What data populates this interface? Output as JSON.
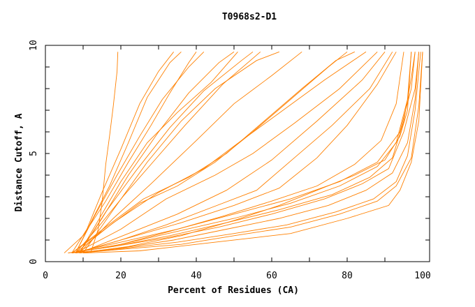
{
  "chart_data": {
    "type": "line",
    "title": "T0968s2-D1",
    "xlabel": "Percent of Residues (CA)",
    "ylabel": "Distance Cutoff, A",
    "xlim": [
      0,
      100
    ],
    "ylim": [
      0,
      10
    ],
    "xticks": [
      "0",
      "20",
      "40",
      "60",
      "80",
      "100"
    ],
    "yticks": [
      "0",
      "5",
      "10"
    ],
    "grid": false,
    "line_color": "#ff8000",
    "series": [
      {
        "points": [
          [
            12,
            0.4
          ],
          [
            14,
            1.5
          ],
          [
            15,
            2.7
          ],
          [
            16,
            4.5
          ],
          [
            17,
            5.8
          ],
          [
            18,
            7.2
          ],
          [
            19,
            8.8
          ],
          [
            19.2,
            9.7
          ]
        ]
      },
      {
        "points": [
          [
            7,
            0.4
          ],
          [
            11,
            1.5
          ],
          [
            15,
            3.2
          ],
          [
            20,
            5.2
          ],
          [
            25,
            7.3
          ],
          [
            30,
            8.8
          ],
          [
            34,
            9.7
          ]
        ]
      },
      {
        "points": [
          [
            8,
            0.4
          ],
          [
            12,
            1.8
          ],
          [
            17,
            3.5
          ],
          [
            22,
            5.5
          ],
          [
            27,
            7.6
          ],
          [
            33,
            9.2
          ],
          [
            36,
            9.7
          ]
        ]
      },
      {
        "points": [
          [
            8,
            0.4
          ],
          [
            13,
            2.1
          ],
          [
            19,
            4.0
          ],
          [
            25,
            5.8
          ],
          [
            31,
            7.5
          ],
          [
            38,
            9.0
          ],
          [
            42,
            9.7
          ]
        ]
      },
      {
        "points": [
          [
            9,
            0.4
          ],
          [
            15,
            2.0
          ],
          [
            22,
            4.0
          ],
          [
            30,
            6.0
          ],
          [
            38,
            7.8
          ],
          [
            46,
            9.2
          ],
          [
            50,
            9.7
          ]
        ]
      },
      {
        "points": [
          [
            9,
            0.4
          ],
          [
            16,
            2.3
          ],
          [
            24,
            4.2
          ],
          [
            33,
            6.2
          ],
          [
            42,
            7.9
          ],
          [
            52,
            9.3
          ],
          [
            55,
            9.7
          ]
        ]
      },
      {
        "points": [
          [
            8,
            0.4
          ],
          [
            14,
            1.6
          ],
          [
            21,
            3.1
          ],
          [
            28,
            4.5
          ],
          [
            37,
            6.3
          ],
          [
            47,
            8.2
          ],
          [
            57,
            9.7
          ]
        ]
      },
      {
        "points": [
          [
            10,
            0.4
          ],
          [
            18,
            2.4
          ],
          [
            27,
            4.6
          ],
          [
            36,
            6.5
          ],
          [
            45,
            8.0
          ],
          [
            56,
            9.3
          ],
          [
            62,
            9.7
          ]
        ]
      },
      {
        "points": [
          [
            9,
            0.4
          ],
          [
            18,
            2.0
          ],
          [
            28,
            3.6
          ],
          [
            40,
            5.6
          ],
          [
            50,
            7.3
          ],
          [
            60,
            8.6
          ],
          [
            68,
            9.7
          ]
        ]
      },
      {
        "points": [
          [
            7,
            0.4
          ],
          [
            15,
            1.4
          ],
          [
            25,
            2.7
          ],
          [
            35,
            3.5
          ],
          [
            45,
            4.6
          ],
          [
            55,
            6.0
          ],
          [
            65,
            7.5
          ],
          [
            75,
            9.0
          ],
          [
            80,
            9.7
          ]
        ]
      },
      {
        "points": [
          [
            7,
            0.4
          ],
          [
            16,
            1.6
          ],
          [
            26,
            2.9
          ],
          [
            38,
            3.9
          ],
          [
            48,
            5.0
          ],
          [
            58,
            6.5
          ],
          [
            68,
            8.0
          ],
          [
            77,
            9.3
          ],
          [
            82,
            9.7
          ]
        ]
      },
      {
        "points": [
          [
            8,
            0.4
          ],
          [
            18,
            1.8
          ],
          [
            30,
            3.2
          ],
          [
            42,
            4.3
          ],
          [
            52,
            5.6
          ],
          [
            63,
            7.0
          ],
          [
            74,
            8.4
          ],
          [
            85,
            9.7
          ]
        ]
      },
      {
        "points": [
          [
            8,
            0.4
          ],
          [
            20,
            1.5
          ],
          [
            32,
            2.9
          ],
          [
            45,
            4.0
          ],
          [
            55,
            5.0
          ],
          [
            66,
            6.4
          ],
          [
            78,
            8.0
          ],
          [
            88,
            9.7
          ]
        ]
      },
      {
        "points": [
          [
            9,
            0.4
          ],
          [
            22,
            1.3
          ],
          [
            35,
            2.2
          ],
          [
            48,
            3.3
          ],
          [
            60,
            4.7
          ],
          [
            72,
            6.5
          ],
          [
            84,
            8.4
          ],
          [
            90,
            9.7
          ]
        ]
      },
      {
        "points": [
          [
            8,
            0.4
          ],
          [
            22,
            1.1
          ],
          [
            36,
            1.8
          ],
          [
            50,
            2.6
          ],
          [
            62,
            3.4
          ],
          [
            72,
            4.8
          ],
          [
            80,
            6.3
          ],
          [
            88,
            8.2
          ],
          [
            93,
            9.7
          ]
        ]
      },
      {
        "points": [
          [
            7,
            0.4
          ],
          [
            20,
            0.9
          ],
          [
            35,
            1.5
          ],
          [
            50,
            2.2
          ],
          [
            65,
            2.9
          ],
          [
            78,
            3.7
          ],
          [
            88,
            4.6
          ],
          [
            94,
            6.0
          ],
          [
            97,
            8.0
          ],
          [
            98,
            9.7
          ]
        ]
      },
      {
        "points": [
          [
            7,
            0.4
          ],
          [
            20,
            0.8
          ],
          [
            35,
            1.4
          ],
          [
            50,
            2.0
          ],
          [
            65,
            2.7
          ],
          [
            78,
            3.5
          ],
          [
            88,
            4.4
          ],
          [
            93,
            5.5
          ],
          [
            96,
            7.5
          ],
          [
            97,
            9.7
          ]
        ]
      },
      {
        "points": [
          [
            6,
            0.4
          ],
          [
            18,
            0.7
          ],
          [
            33,
            1.2
          ],
          [
            48,
            1.8
          ],
          [
            62,
            2.4
          ],
          [
            76,
            3.1
          ],
          [
            86,
            3.9
          ],
          [
            92,
            4.8
          ],
          [
            95,
            6.5
          ],
          [
            97,
            8.5
          ],
          [
            98,
            9.7
          ]
        ]
      },
      {
        "points": [
          [
            6,
            0.4
          ],
          [
            18,
            0.7
          ],
          [
            32,
            1.1
          ],
          [
            46,
            1.6
          ],
          [
            60,
            2.2
          ],
          [
            74,
            2.9
          ],
          [
            84,
            3.6
          ],
          [
            91,
            4.3
          ],
          [
            95,
            6.0
          ],
          [
            98,
            8.0
          ],
          [
            99,
            9.7
          ]
        ]
      },
      {
        "points": [
          [
            7,
            0.4
          ],
          [
            19,
            0.6
          ],
          [
            34,
            1.0
          ],
          [
            48,
            1.5
          ],
          [
            62,
            2.0
          ],
          [
            75,
            2.6
          ],
          [
            85,
            3.3
          ],
          [
            92,
            4.1
          ],
          [
            96,
            5.5
          ],
          [
            98,
            7.5
          ],
          [
            99,
            9.7
          ]
        ]
      },
      {
        "points": [
          [
            8,
            0.4
          ],
          [
            20,
            0.6
          ],
          [
            35,
            0.9
          ],
          [
            50,
            1.3
          ],
          [
            64,
            1.7
          ],
          [
            77,
            2.3
          ],
          [
            87,
            2.9
          ],
          [
            93,
            3.7
          ],
          [
            96,
            4.9
          ],
          [
            98,
            7.0
          ],
          [
            99.5,
            9.7
          ]
        ]
      },
      {
        "points": [
          [
            9,
            0.4
          ],
          [
            22,
            0.6
          ],
          [
            36,
            0.8
          ],
          [
            50,
            1.2
          ],
          [
            65,
            1.6
          ],
          [
            78,
            2.2
          ],
          [
            88,
            2.8
          ],
          [
            93,
            3.5
          ],
          [
            97,
            4.8
          ],
          [
            99,
            7.2
          ],
          [
            100,
            9.7
          ]
        ]
      },
      {
        "points": [
          [
            10,
            0.4
          ],
          [
            25,
            0.5
          ],
          [
            40,
            0.8
          ],
          [
            55,
            1.1
          ],
          [
            65,
            1.3
          ],
          [
            80,
            2.0
          ],
          [
            91,
            2.6
          ],
          [
            94,
            3.3
          ],
          [
            97,
            4.6
          ],
          [
            99,
            6.5
          ],
          [
            100,
            9.7
          ]
        ]
      },
      {
        "points": [
          [
            9,
            0.4
          ],
          [
            22,
            0.7
          ],
          [
            36,
            1.2
          ],
          [
            50,
            1.9
          ],
          [
            62,
            2.6
          ],
          [
            72,
            3.3
          ],
          [
            82,
            4.0
          ],
          [
            90,
            4.7
          ],
          [
            94,
            5.8
          ],
          [
            96,
            7.0
          ],
          [
            97,
            9.7
          ]
        ]
      },
      {
        "points": [
          [
            7,
            0.4
          ],
          [
            20,
            0.8
          ],
          [
            33,
            1.4
          ],
          [
            47,
            2.1
          ],
          [
            60,
            2.8
          ],
          [
            72,
            3.5
          ],
          [
            82,
            4.5
          ],
          [
            89,
            5.6
          ],
          [
            93,
            7.3
          ],
          [
            95,
            9.7
          ]
        ]
      },
      {
        "points": [
          [
            8,
            0.4
          ],
          [
            20,
            1.0
          ],
          [
            32,
            1.7
          ],
          [
            44,
            2.5
          ],
          [
            56,
            3.3
          ],
          [
            66,
            4.8
          ],
          [
            76,
            6.3
          ],
          [
            86,
            8.0
          ],
          [
            92,
            9.7
          ]
        ]
      },
      {
        "points": [
          [
            5,
            0.4
          ],
          [
            10,
            1.2
          ],
          [
            16,
            2.8
          ],
          [
            22,
            4.6
          ],
          [
            28,
            6.3
          ],
          [
            33,
            7.8
          ],
          [
            38,
            9.2
          ],
          [
            40,
            9.7
          ]
        ]
      },
      {
        "points": [
          [
            9,
            0.4
          ],
          [
            14,
            1.9
          ],
          [
            20,
            3.7
          ],
          [
            27,
            5.5
          ],
          [
            35,
            6.9
          ],
          [
            44,
            8.3
          ],
          [
            51,
            9.7
          ]
        ]
      }
    ]
  }
}
